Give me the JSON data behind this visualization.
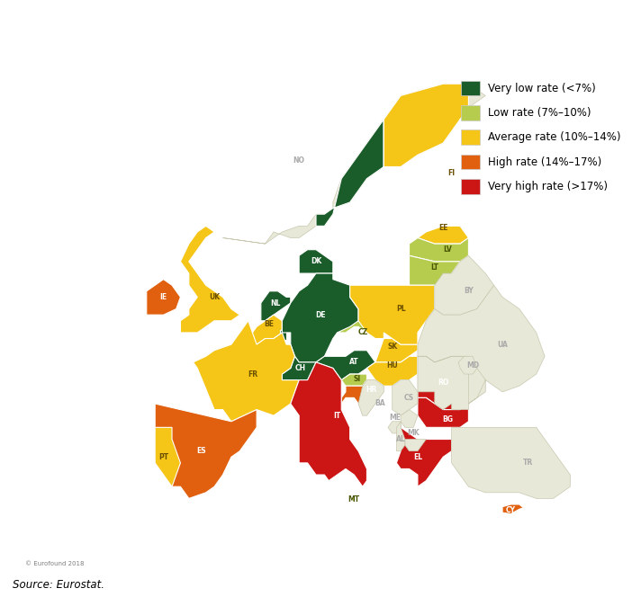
{
  "legend": [
    {
      "label": "Very low rate (<7%)",
      "color": "#1a5c2a"
    },
    {
      "label": "Low rate (7%–10%)",
      "color": "#b5cc4f"
    },
    {
      "label": "Average rate (10%–14%)",
      "color": "#f5c518"
    },
    {
      "label": "High rate (14%–17%)",
      "color": "#e06010"
    },
    {
      "label": "Very high rate (>17%)",
      "color": "#cc1515"
    }
  ],
  "source": "Source: Eurostat.",
  "copyright": "© Eurofound 2018",
  "colors": {
    "very_low": "#1a5c2a",
    "low": "#b5cc4f",
    "average": "#f5c518",
    "high": "#e06010",
    "very_high": "#cc1515",
    "non_eu": "#e8e8d8",
    "ocean": "#d0e8f0",
    "border_eu": "#ffffff",
    "border_non_eu": "#c8c8b0"
  },
  "figsize": [
    7.02,
    6.74
  ],
  "dpi": 100
}
